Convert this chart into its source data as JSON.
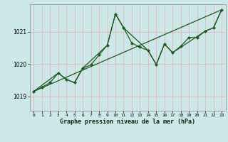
{
  "xlabel": "Graphe pression niveau de la mer (hPa)",
  "background_color": "#cce8e8",
  "grid_color": "#e8b8c0",
  "line_color": "#1a5c1a",
  "x_ticks": [
    0,
    1,
    2,
    3,
    4,
    5,
    6,
    7,
    8,
    9,
    10,
    11,
    12,
    13,
    14,
    15,
    16,
    17,
    18,
    19,
    20,
    21,
    22,
    23
  ],
  "ylim": [
    1018.55,
    1021.85
  ],
  "yticks": [
    1019,
    1020,
    1021
  ],
  "line1_x": [
    0,
    1,
    2,
    3,
    4,
    5,
    6,
    7,
    8,
    9,
    10,
    11,
    12,
    13,
    14,
    15,
    16,
    17,
    18,
    19,
    20,
    21,
    22,
    23
  ],
  "line1_y": [
    1019.15,
    1019.28,
    1019.42,
    1019.72,
    1019.52,
    1019.42,
    1019.87,
    1019.97,
    1020.28,
    1020.58,
    1021.55,
    1021.12,
    1020.65,
    1020.52,
    1020.42,
    1019.98,
    1020.62,
    1020.35,
    1020.55,
    1020.82,
    1020.82,
    1021.02,
    1021.12,
    1021.68
  ],
  "line2_x": [
    0,
    3,
    4,
    5,
    6,
    9,
    10,
    11,
    14,
    15,
    16,
    17,
    21,
    22,
    23
  ],
  "line2_y": [
    1019.15,
    1019.72,
    1019.52,
    1019.42,
    1019.87,
    1020.58,
    1021.55,
    1021.12,
    1020.42,
    1019.98,
    1020.62,
    1020.35,
    1021.02,
    1021.12,
    1021.68
  ],
  "trend_x": [
    0,
    23
  ],
  "trend_y": [
    1019.15,
    1021.68
  ]
}
